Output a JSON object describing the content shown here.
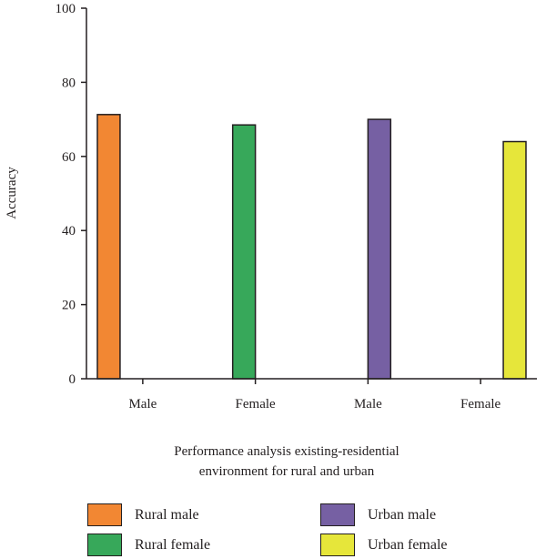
{
  "chart_data": {
    "type": "bar",
    "categories": [
      "Male",
      "Female",
      "Male",
      "Female"
    ],
    "series": [
      {
        "name": "Rural male",
        "color": "#f28733",
        "values": [
          71.3,
          null,
          null,
          null
        ]
      },
      {
        "name": "Rural female",
        "color": "#37a85a",
        "values": [
          null,
          68.5,
          null,
          null
        ]
      },
      {
        "name": "Urban male",
        "color": "#7660a3",
        "values": [
          null,
          null,
          70.0,
          null
        ]
      },
      {
        "name": "Urban female",
        "color": "#e6e63a",
        "values": [
          null,
          null,
          null,
          64.0
        ]
      }
    ],
    "title": "",
    "xlabel_line1": "Performance analysis existing-residential",
    "xlabel_line2": "environment for rural and urban",
    "ylabel": "Accuracy",
    "ylim": [
      0,
      100
    ],
    "yticks": [
      0,
      20,
      40,
      60,
      80,
      100
    ],
    "grid": false,
    "legend_position": "bottom"
  }
}
